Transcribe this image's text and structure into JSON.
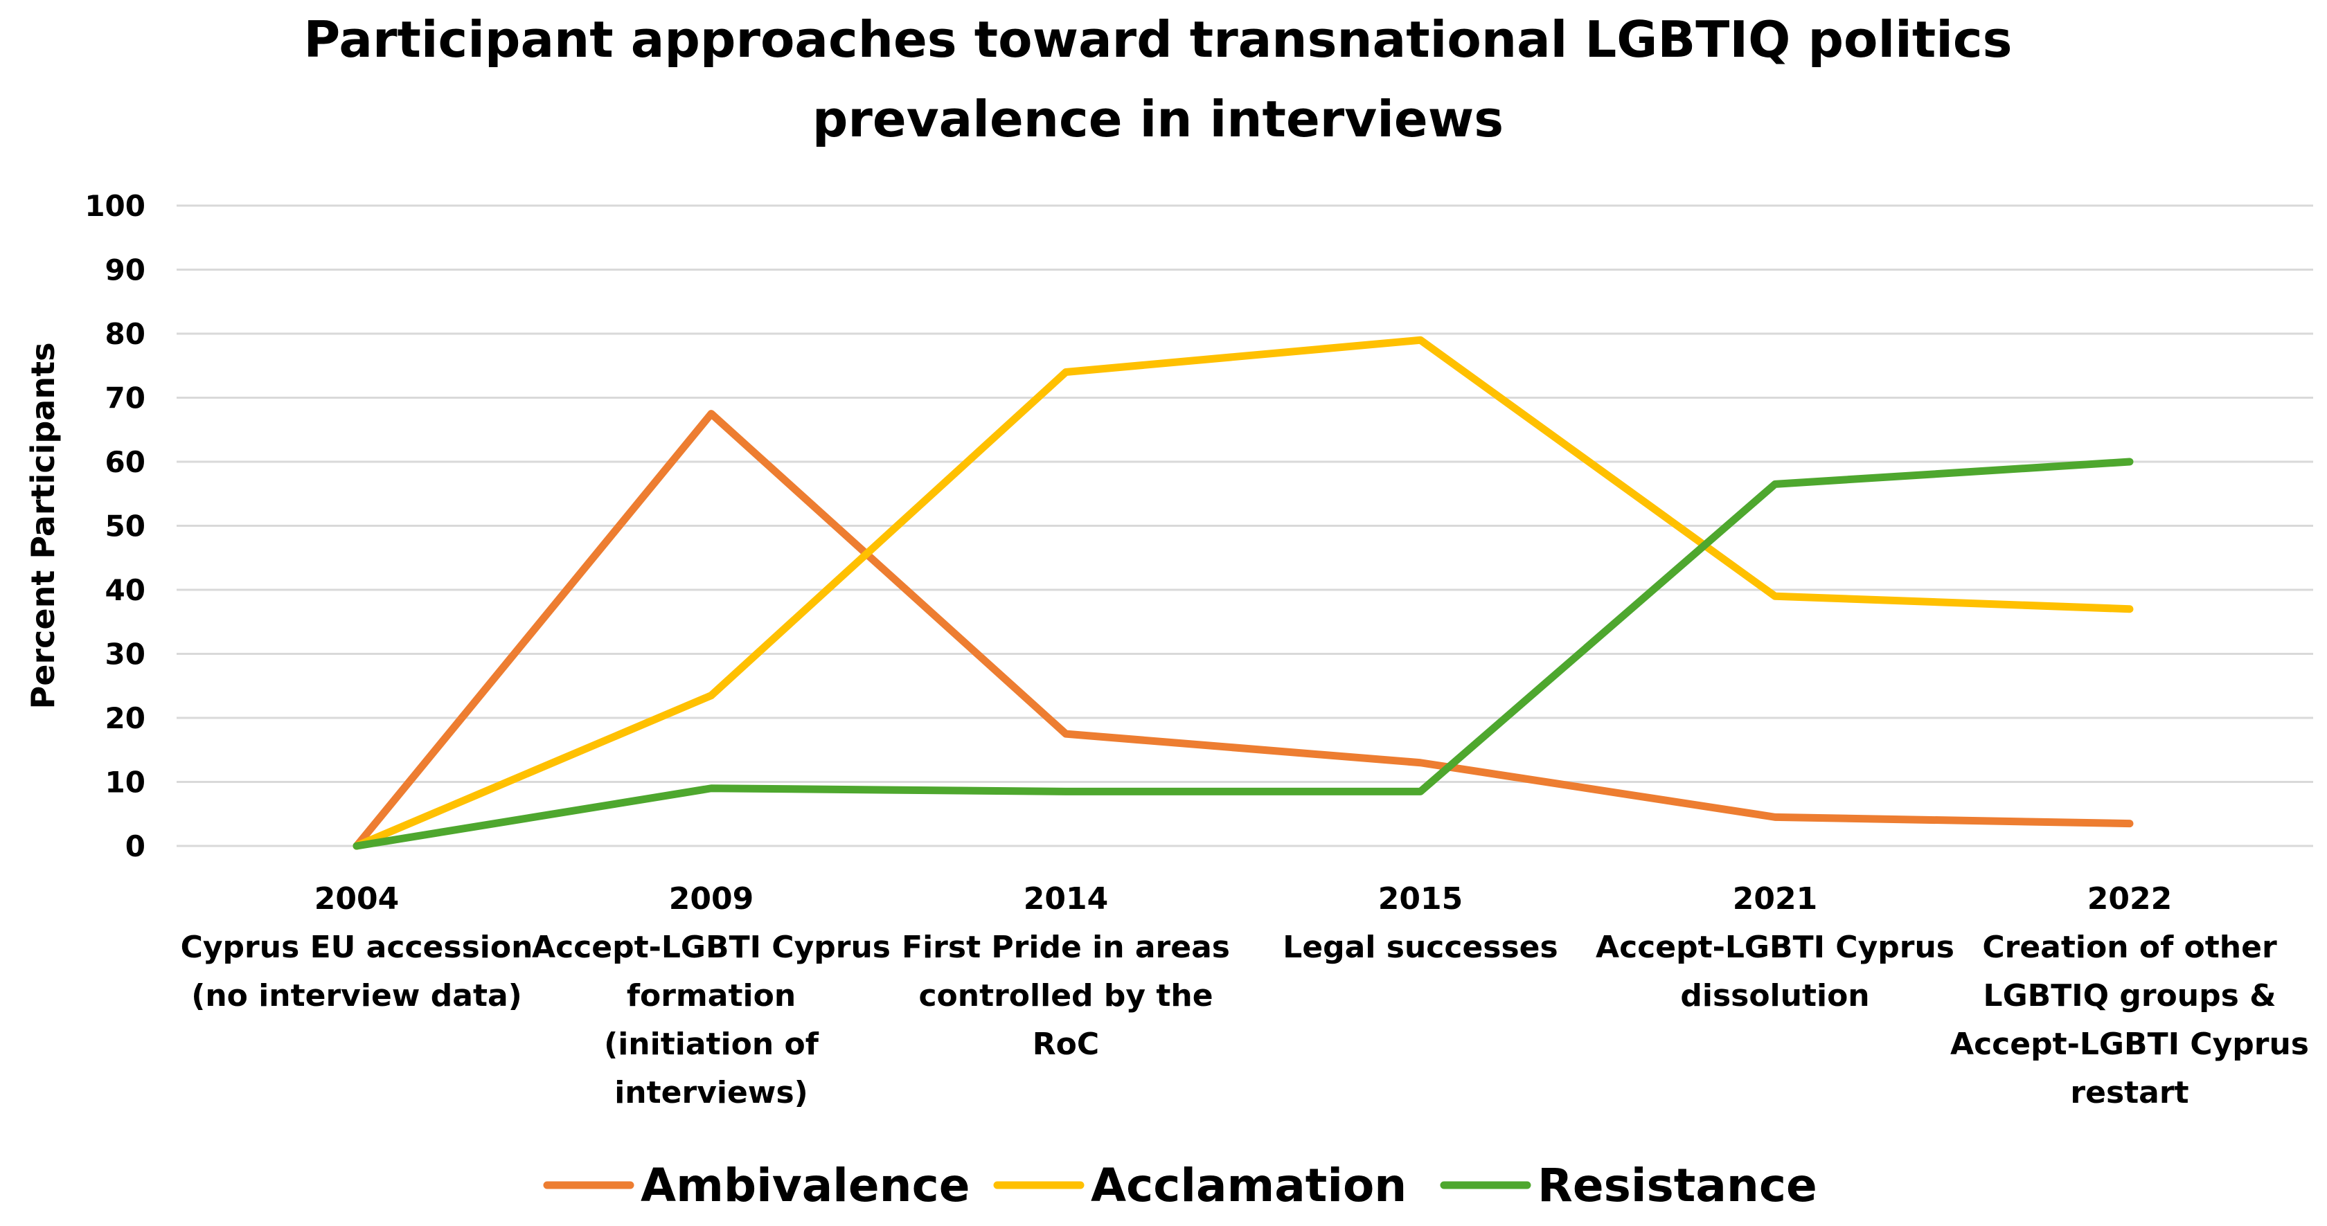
{
  "chart_data": {
    "type": "line",
    "title_lines": [
      "Participant  approaches  toward transnational  LGBTIQ politics",
      "prevalence in interviews"
    ],
    "ylabel": "Percent Participants",
    "xlabel": "",
    "ylim": [
      0,
      100
    ],
    "yticks": [
      0,
      10,
      20,
      30,
      40,
      50,
      60,
      70,
      80,
      90,
      100
    ],
    "grid": true,
    "legend_position": "bottom",
    "categories": [
      [
        "2004",
        "Cyprus EU accession",
        "(no interview data)"
      ],
      [
        "2009",
        "Accept-LGBTI Cyprus",
        "formation",
        "(initiation of",
        "interviews)"
      ],
      [
        "2014",
        "First Pride in areas",
        "controlled by the",
        "RoC"
      ],
      [
        "2015",
        "Legal successes"
      ],
      [
        "2021",
        "Accept-LGBTI Cyprus",
        "dissolution"
      ],
      [
        "2022",
        "Creation of other",
        "LGBTIQ groups &",
        "Accept-LGBTI Cyprus",
        "restart"
      ]
    ],
    "series": [
      {
        "name": "Ambivalence",
        "color": "#ED7D31",
        "values": [
          0,
          67.5,
          17.5,
          13,
          4.5,
          3.5
        ]
      },
      {
        "name": "Acclamation",
        "color": "#FFC000",
        "values": [
          0,
          23.5,
          74,
          79,
          39,
          37
        ]
      },
      {
        "name": "Resistance",
        "color": "#4EA72E",
        "values": [
          0,
          9,
          8.5,
          8.5,
          56.5,
          60
        ]
      }
    ]
  }
}
